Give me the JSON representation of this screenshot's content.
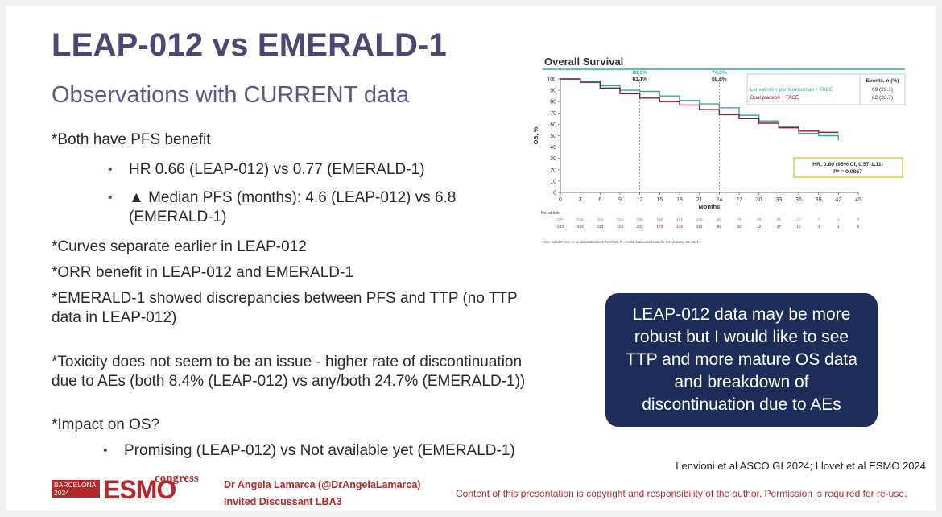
{
  "slide": {
    "title": "LEAP-012 vs EMERALD-1",
    "subtitle": "Observations with CURRENT data"
  },
  "body": {
    "p1": "*Both have PFS benefit",
    "b1": "HR 0.66 (LEAP-012) vs 0.77 (EMERALD-1)",
    "b2_line1": "▲ Median PFS (months): 4.6 (LEAP-012) vs 6.8",
    "b2_line2": "(EMERALD-1)",
    "p2": "*Curves separate earlier in LEAP-012",
    "p3": "*ORR benefit in LEAP-012 and EMERALD-1",
    "p4_line1": "*EMERALD-1 showed discrepancies between PFS and TTP (no TTP",
    "p4_line2": "data in LEAP-012)",
    "p5_line1": "*Toxicity does not seem to be an issue - higher rate of discontinuation",
    "p5_line2": "due to AEs (both 8.4% (LEAP-012) vs any/both 24.7% (EMERALD-1))",
    "p6": "*Impact on OS?",
    "b3": "Promising (LEAP-012) vs Not available yet (EMERALD-1)",
    "bullet_glyph": "•"
  },
  "callout": {
    "text": "LEAP-012 data may be more robust but I would like to see TTP and more mature OS data and breakdown of discontinuation due to AEs"
  },
  "reference": {
    "text1": "Lenvioni et al ASCO GI 2024;",
    "text2": " Llovet et al ESMO 2024"
  },
  "footer": {
    "logo_city": "BARCELONA",
    "logo_year": "2024",
    "logo_esmo": "ESMO",
    "logo_congress": "congress",
    "presenter": "Dr Angela Lamarca (@DrAngelaLamarca)",
    "role": "Invited Discussant LBA3",
    "copyright": "Content of this presentation is copyright and responsibility of the author. Permission is required for re-use."
  },
  "chart_data": {
    "type": "line",
    "title": "Overall Survival",
    "xlabel": "Months",
    "ylabel": "OS, %",
    "xlim": [
      0,
      45
    ],
    "ylim": [
      0,
      100
    ],
    "x_ticks": [
      0,
      3,
      6,
      9,
      12,
      15,
      18,
      21,
      24,
      27,
      30,
      33,
      36,
      39,
      42,
      45
    ],
    "y_ticks": [
      0,
      10,
      20,
      30,
      40,
      50,
      60,
      70,
      80,
      90,
      100
    ],
    "series": [
      {
        "name": "Lenvatinib + pembrolizumab + TACE",
        "color": "#3aa6a0",
        "x": [
          0,
          3,
          6,
          9,
          12,
          15,
          18,
          21,
          24,
          27,
          30,
          33,
          36,
          39,
          42
        ],
        "y": [
          100,
          98,
          94,
          90,
          89,
          85,
          81,
          78,
          74.6,
          68,
          63,
          58,
          52,
          50,
          46
        ]
      },
      {
        "name": "Dual placebo + TACE",
        "color": "#8b1e2d",
        "x": [
          0,
          3,
          6,
          9,
          12,
          15,
          18,
          21,
          24,
          27,
          30,
          33,
          36,
          39,
          42
        ],
        "y": [
          100,
          97,
          92,
          87,
          83.1,
          80,
          77,
          73,
          68.6,
          65,
          61,
          57,
          54,
          53,
          53
        ]
      }
    ],
    "annotations": [
      {
        "x": 12,
        "labels": [
          "89.0%",
          "83.1%"
        ]
      },
      {
        "x": 24,
        "labels": [
          "74.6%",
          "68.6%"
        ]
      }
    ],
    "legend": {
      "header": "Events, n (%)",
      "entries": [
        {
          "label": "Lenvatinib + pembrolizumab + TACE",
          "events": "69 (29.1)"
        },
        {
          "label": "Dual placebo + TACE",
          "events": "82 (33.7)"
        }
      ]
    },
    "hr_box": {
      "line1": "HR, 0.80 (95% CI, 0.57-1.11)",
      "line2": "P* = 0.0867"
    },
    "risk_table": {
      "header": "No. at risk",
      "rows": [
        {
          "color": "#3aa6a0",
          "values": [
            "237",
            "234",
            "224",
            "214",
            "206",
            "190",
            "161",
            "126",
            "95",
            "74",
            "46",
            "31",
            "17",
            "7",
            "1",
            "0"
          ]
        },
        {
          "color": "#8b1e2d",
          "values": [
            "243",
            "242",
            "233",
            "218",
            "202",
            "173",
            "145",
            "112",
            "86",
            "60",
            "42",
            "27",
            "15",
            "4",
            "1",
            "0"
          ]
        }
      ]
    },
    "footnote": "*One-sided P from re-randomization test; threshold P = 0.025. Data cutoff date for IA1: January 30, 2024."
  }
}
